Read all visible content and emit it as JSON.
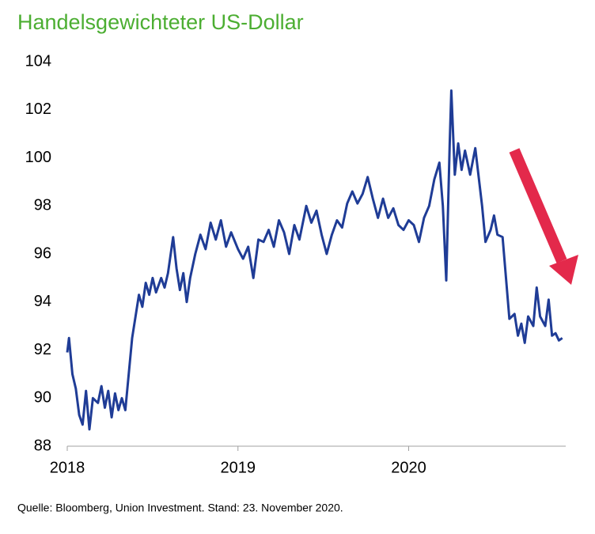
{
  "chart_data": {
    "type": "line",
    "title": "Handelsgewichteter US-Dollar",
    "source": "Quelle: Bloomberg, Union Investment. Stand: 23. November 2020.",
    "xlim": [
      2018,
      2020.92
    ],
    "xticks": [
      2018,
      2019,
      2020
    ],
    "ylim": [
      88,
      104
    ],
    "yticks": [
      88,
      90,
      92,
      94,
      96,
      98,
      100,
      102,
      104
    ],
    "series": [
      {
        "color": "#1f3c96",
        "x": [
          2018.0,
          2018.01,
          2018.03,
          2018.05,
          2018.07,
          2018.09,
          2018.11,
          2018.13,
          2018.15,
          2018.18,
          2018.2,
          2018.22,
          2018.24,
          2018.26,
          2018.28,
          2018.3,
          2018.32,
          2018.34,
          2018.36,
          2018.38,
          2018.4,
          2018.42,
          2018.44,
          2018.46,
          2018.48,
          2018.5,
          2018.52,
          2018.55,
          2018.57,
          2018.59,
          2018.62,
          2018.64,
          2018.66,
          2018.68,
          2018.7,
          2018.72,
          2018.75,
          2018.78,
          2018.81,
          2018.84,
          2018.87,
          2018.9,
          2018.93,
          2018.96,
          2019.0,
          2019.03,
          2019.06,
          2019.09,
          2019.12,
          2019.15,
          2019.18,
          2019.21,
          2019.24,
          2019.27,
          2019.3,
          2019.33,
          2019.36,
          2019.4,
          2019.43,
          2019.46,
          2019.49,
          2019.52,
          2019.55,
          2019.58,
          2019.61,
          2019.64,
          2019.67,
          2019.7,
          2019.73,
          2019.76,
          2019.79,
          2019.82,
          2019.85,
          2019.88,
          2019.91,
          2019.94,
          2019.97,
          2020.0,
          2020.03,
          2020.06,
          2020.09,
          2020.12,
          2020.15,
          2020.18,
          2020.2,
          2020.22,
          2020.24,
          2020.25,
          2020.27,
          2020.29,
          2020.31,
          2020.33,
          2020.36,
          2020.39,
          2020.41,
          2020.43,
          2020.45,
          2020.48,
          2020.5,
          2020.52,
          2020.55,
          2020.57,
          2020.59,
          2020.62,
          2020.64,
          2020.66,
          2020.68,
          2020.7,
          2020.73,
          2020.75,
          2020.77,
          2020.8,
          2020.82,
          2020.84,
          2020.86,
          2020.88,
          2020.9
        ],
        "values": [
          91.9,
          92.5,
          91.0,
          90.4,
          89.3,
          88.9,
          90.3,
          88.7,
          90.0,
          89.8,
          90.5,
          89.6,
          90.3,
          89.2,
          90.2,
          89.5,
          90.0,
          89.5,
          91.0,
          92.5,
          93.4,
          94.3,
          93.8,
          94.8,
          94.3,
          95.0,
          94.4,
          95.0,
          94.6,
          95.2,
          96.7,
          95.4,
          94.5,
          95.2,
          94.0,
          95.0,
          96.0,
          96.8,
          96.2,
          97.3,
          96.6,
          97.4,
          96.3,
          96.9,
          96.2,
          95.8,
          96.3,
          95.0,
          96.6,
          96.5,
          97.0,
          96.3,
          97.4,
          96.9,
          96.0,
          97.2,
          96.6,
          98.0,
          97.3,
          97.8,
          96.8,
          96.0,
          96.8,
          97.4,
          97.1,
          98.1,
          98.6,
          98.1,
          98.5,
          99.2,
          98.3,
          97.5,
          98.3,
          97.5,
          97.9,
          97.2,
          97.0,
          97.4,
          97.2,
          96.5,
          97.5,
          98.0,
          99.1,
          99.8,
          98.0,
          94.9,
          100.5,
          102.8,
          99.3,
          100.6,
          99.5,
          100.3,
          99.3,
          100.4,
          99.2,
          98.0,
          96.5,
          97.0,
          97.6,
          96.8,
          96.7,
          95.0,
          93.3,
          93.5,
          92.6,
          93.1,
          92.3,
          93.4,
          93.0,
          94.6,
          93.4,
          93.0,
          94.1,
          92.6,
          92.7,
          92.4,
          92.5
        ]
      }
    ]
  }
}
